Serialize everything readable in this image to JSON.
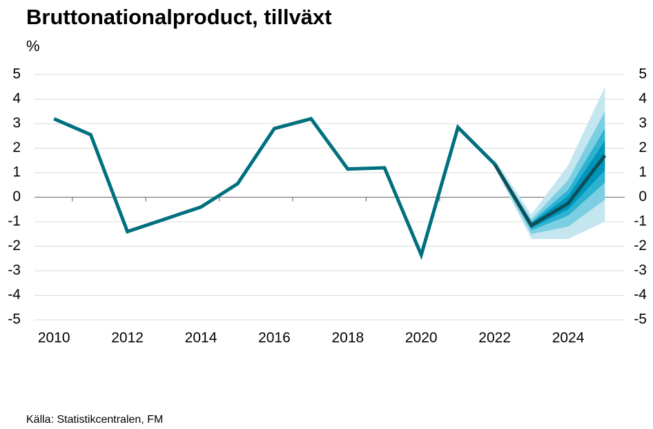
{
  "chart_data": {
    "type": "line",
    "title": "Bruttonationalproduct, tillväxt",
    "unit": "%",
    "source": "Källa: Statistikcentralen, FM",
    "x": [
      2010,
      2011,
      2012,
      2013,
      2014,
      2015,
      2016,
      2017,
      2018,
      2019,
      2020,
      2021,
      2022,
      2023,
      2024,
      2025
    ],
    "series": [
      {
        "color": "#00707f",
        "values": [
          3.2,
          2.55,
          -1.4,
          -0.9,
          -0.4,
          0.55,
          2.8,
          3.2,
          1.15,
          1.2,
          -2.35,
          2.85,
          1.35,
          null,
          null,
          null
        ]
      },
      {
        "color": "#0d4f58",
        "values": [
          null,
          null,
          null,
          null,
          null,
          null,
          null,
          null,
          null,
          null,
          null,
          null,
          1.35,
          -1.15,
          -0.25,
          1.7
        ]
      }
    ],
    "bands": [
      {
        "color": "#c3e6ef",
        "lower": [
          null,
          null,
          null,
          null,
          null,
          null,
          null,
          null,
          null,
          null,
          null,
          null,
          1.2,
          -1.7,
          -1.7,
          -1.0
        ],
        "upper": [
          null,
          null,
          null,
          null,
          null,
          null,
          null,
          null,
          null,
          null,
          null,
          null,
          1.55,
          -0.7,
          1.3,
          4.5
        ]
      },
      {
        "color": "#7ccfe2",
        "lower": [
          null,
          null,
          null,
          null,
          null,
          null,
          null,
          null,
          null,
          null,
          null,
          null,
          1.25,
          -1.5,
          -1.2,
          -0.1
        ],
        "upper": [
          null,
          null,
          null,
          null,
          null,
          null,
          null,
          null,
          null,
          null,
          null,
          null,
          1.45,
          -0.9,
          0.7,
          3.5
        ]
      },
      {
        "color": "#2db2d2",
        "lower": [
          null,
          null,
          null,
          null,
          null,
          null,
          null,
          null,
          null,
          null,
          null,
          null,
          1.3,
          -1.35,
          -0.75,
          0.6
        ],
        "upper": [
          null,
          null,
          null,
          null,
          null,
          null,
          null,
          null,
          null,
          null,
          null,
          null,
          1.4,
          -1.0,
          0.3,
          2.8
        ]
      },
      {
        "color": "#0096bc",
        "lower": [
          null,
          null,
          null,
          null,
          null,
          null,
          null,
          null,
          null,
          null,
          null,
          null,
          1.33,
          -1.25,
          -0.5,
          1.1
        ],
        "upper": [
          null,
          null,
          null,
          null,
          null,
          null,
          null,
          null,
          null,
          null,
          null,
          null,
          1.38,
          -1.05,
          0.05,
          2.3
        ]
      }
    ],
    "xlim": [
      2009.47,
      2025.54
    ],
    "xticks": [
      2010,
      2012,
      2014,
      2016,
      2018,
      2020,
      2022,
      2024
    ],
    "xminor_ticks": [
      2010.5,
      2012.5,
      2014.5,
      2016.5,
      2018.5,
      2020.5,
      2022.5,
      2024.5
    ],
    "ylim": [
      -5,
      5
    ],
    "yticks": [
      -5,
      -4,
      -3,
      -2,
      -1,
      0,
      1,
      2,
      3,
      4,
      5
    ],
    "y2lim": [
      -5,
      5
    ],
    "y2ticks": [
      -5,
      -4,
      -3,
      -2,
      -1,
      0,
      1,
      2,
      3,
      4,
      5
    ],
    "grid": true
  }
}
